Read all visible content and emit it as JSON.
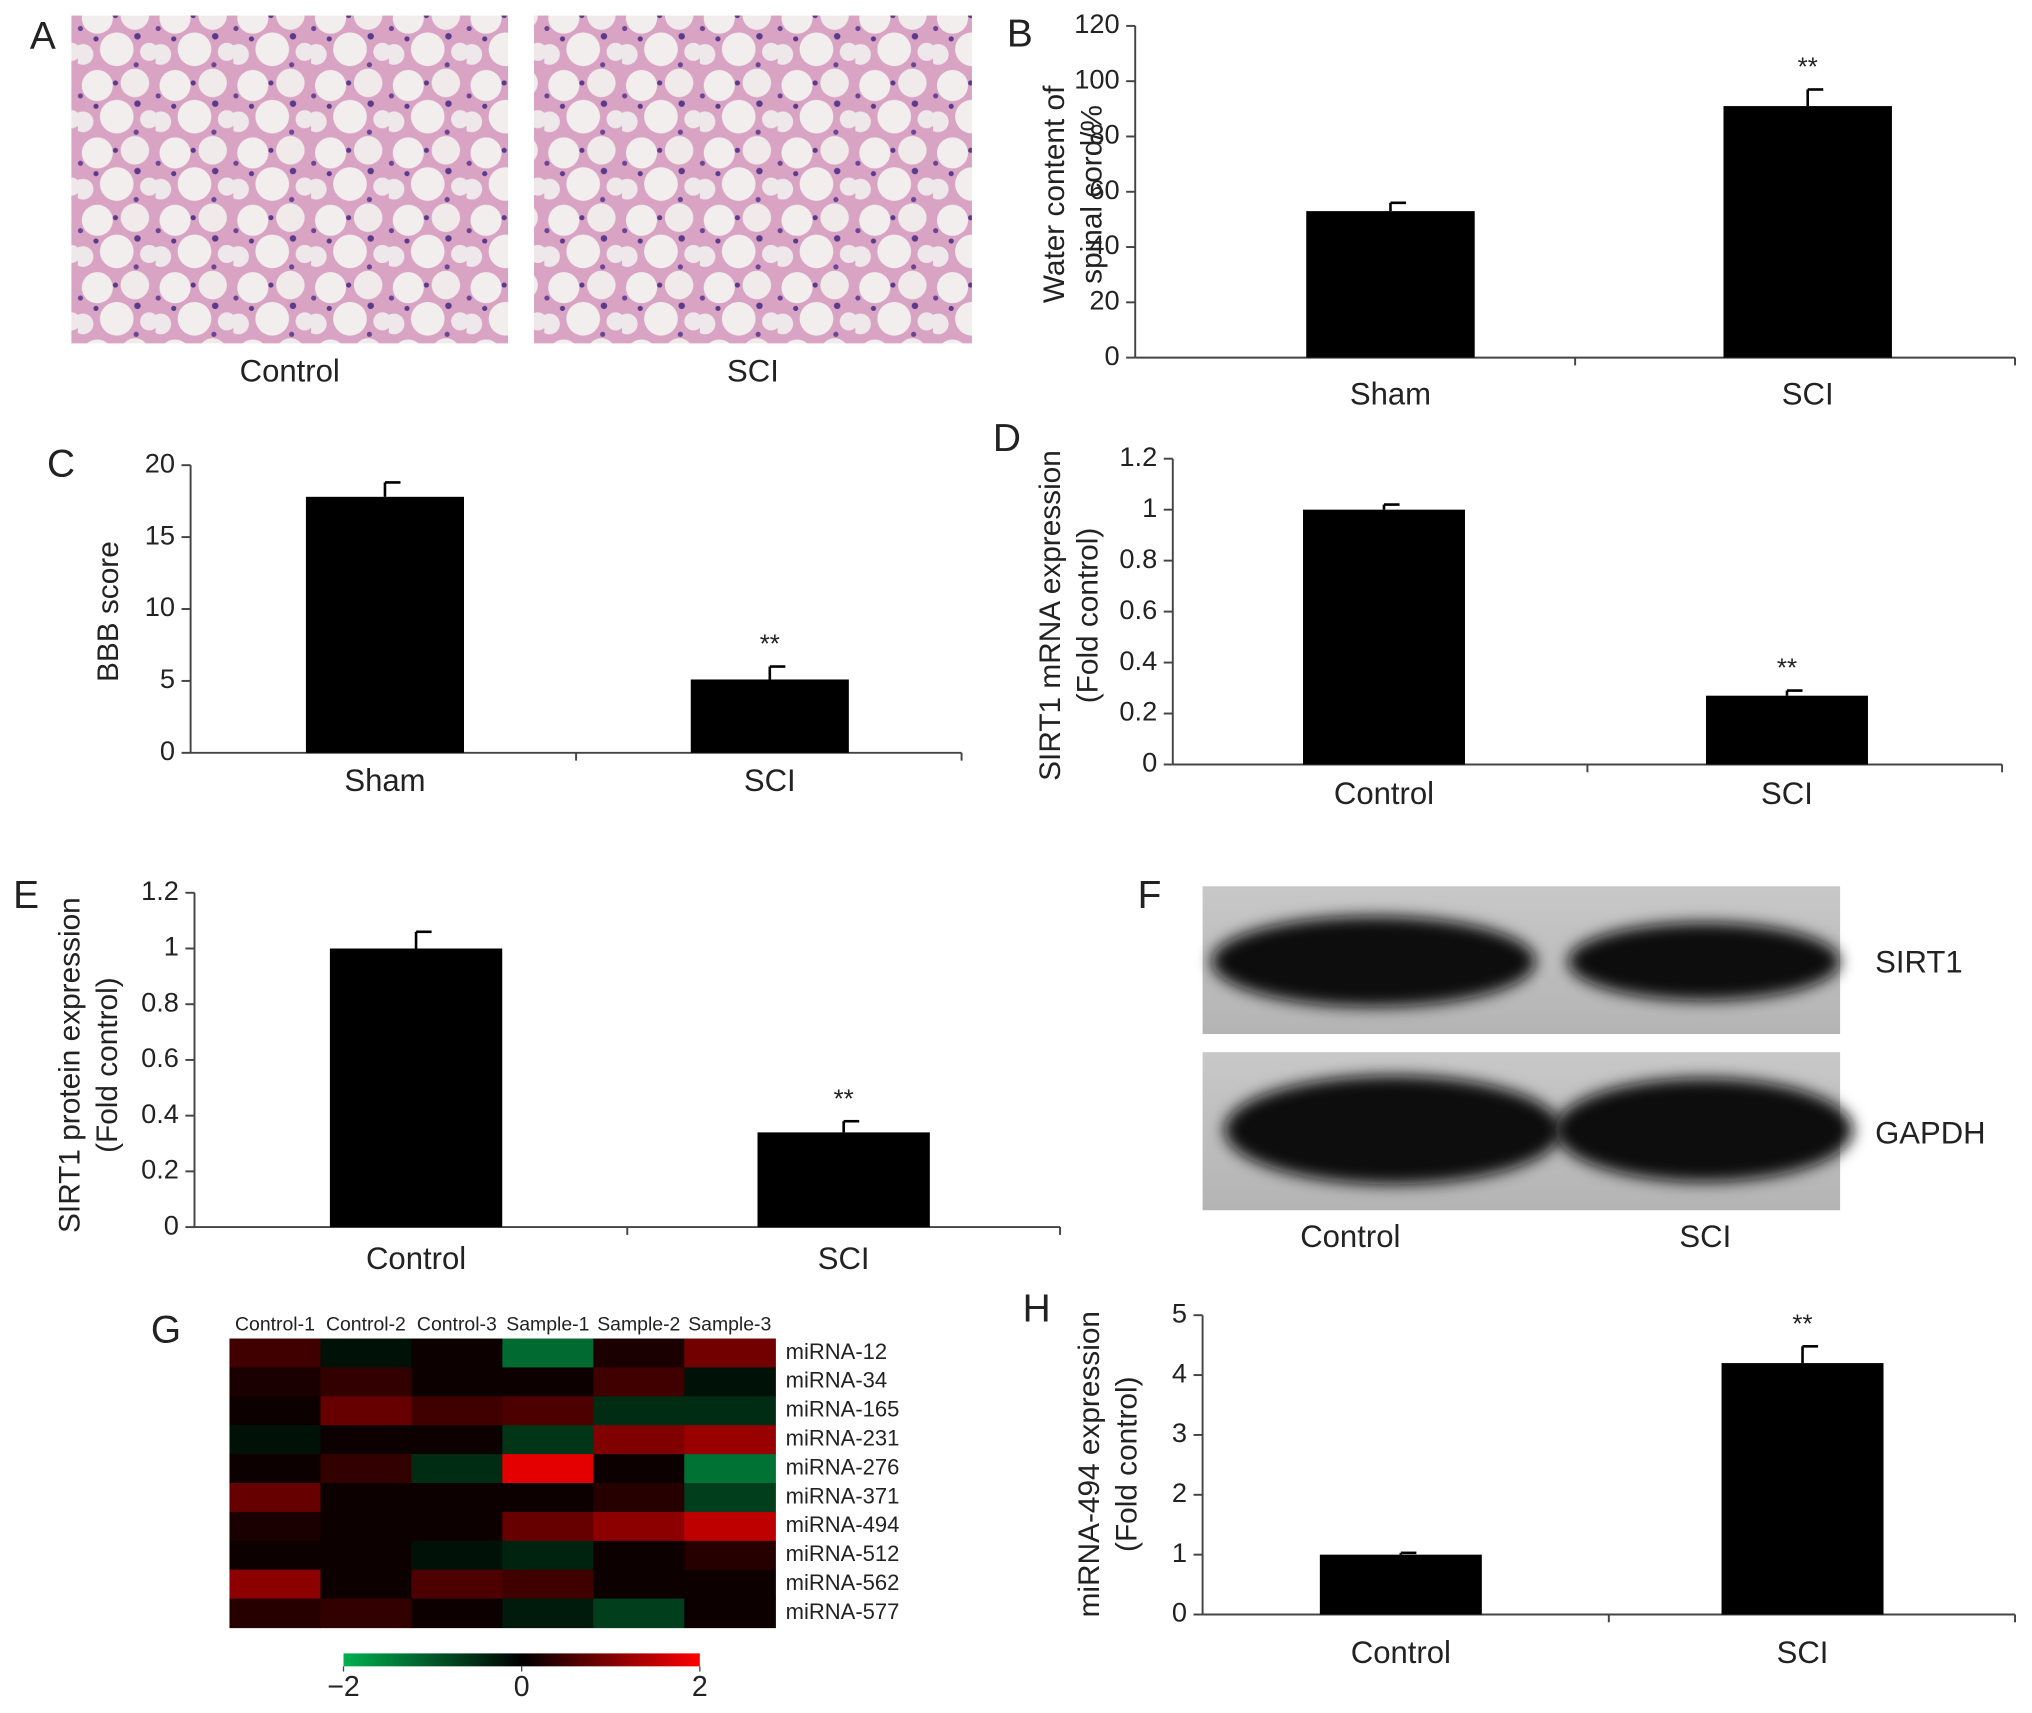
{
  "chart_data": [
    {
      "type": "image",
      "panel": "A",
      "labels": [
        "Control",
        "SCI"
      ]
    },
    {
      "type": "bar",
      "panel": "B",
      "y_label": [
        "Water content of",
        "spinal cord/%"
      ],
      "categories": [
        "Sham",
        "SCI"
      ],
      "values": [
        53,
        91
      ],
      "errors": [
        3,
        6
      ],
      "annotations": [
        null,
        "**"
      ],
      "color": "#000000",
      "ylim": [
        0,
        120
      ],
      "yticks": [
        0,
        20,
        40,
        60,
        80,
        100,
        120
      ]
    },
    {
      "type": "bar",
      "panel": "C",
      "y_label": [
        "BBB score"
      ],
      "categories": [
        "Sham",
        "SCI"
      ],
      "values": [
        17.8,
        5.1
      ],
      "errors": [
        1.0,
        0.9
      ],
      "annotations": [
        null,
        "**"
      ],
      "color": "#000000",
      "ylim": [
        0,
        20
      ],
      "yticks": [
        0,
        5,
        10,
        15,
        20
      ]
    },
    {
      "type": "bar",
      "panel": "D",
      "y_label": [
        "SIRT1 mRNA expression",
        "(Fold control)"
      ],
      "categories": [
        "Control",
        "SCI"
      ],
      "values": [
        1.0,
        0.27
      ],
      "errors": [
        0.02,
        0.02
      ],
      "annotations": [
        null,
        "**"
      ],
      "color": "#000000",
      "ylim": [
        0,
        1.2
      ],
      "yticks": [
        0,
        0.2,
        0.4,
        0.6,
        0.8,
        1,
        1.2
      ]
    },
    {
      "type": "bar",
      "panel": "E",
      "y_label": [
        "SIRT1 protein expression",
        "(Fold control)"
      ],
      "categories": [
        "Control",
        "SCI"
      ],
      "values": [
        1.0,
        0.34
      ],
      "errors": [
        0.06,
        0.04
      ],
      "annotations": [
        null,
        "**"
      ],
      "color": "#000000",
      "ylim": [
        0,
        1.2
      ],
      "yticks": [
        0,
        0.2,
        0.4,
        0.6,
        0.8,
        1,
        1.2
      ]
    },
    {
      "type": "blot",
      "panel": "F",
      "bands": [
        "SIRT1",
        "GAPDH"
      ],
      "lanes": [
        "Control",
        "SCI"
      ]
    },
    {
      "type": "heatmap",
      "panel": "G",
      "x": [
        "Control-1",
        "Control-2",
        "Control-3",
        "Sample-1",
        "Sample-2",
        "Sample-3"
      ],
      "y": [
        "miRNA-12",
        "miRNA-34",
        "miRNA-165",
        "miRNA-231",
        "miRNA-276",
        "miRNA-371",
        "miRNA-494",
        "miRNA-512",
        "miRNA-562",
        "miRNA-577"
      ],
      "z": [
        [
          0.5,
          -0.2,
          0.1,
          -1.2,
          0.2,
          0.9
        ],
        [
          0.2,
          0.4,
          0.1,
          0.1,
          0.5,
          -0.2
        ],
        [
          0.1,
          0.8,
          0.5,
          0.6,
          -0.5,
          -0.5
        ],
        [
          -0.2,
          0.1,
          0.1,
          -0.6,
          1.0,
          1.2
        ],
        [
          0.1,
          0.4,
          -0.5,
          1.8,
          0.1,
          -1.3
        ],
        [
          0.8,
          0.1,
          0.1,
          0.1,
          0.3,
          -0.7
        ],
        [
          0.2,
          0.1,
          0.1,
          0.8,
          1.1,
          1.5
        ],
        [
          0.1,
          0.1,
          -0.2,
          -0.4,
          0.1,
          0.3
        ],
        [
          1.1,
          0.1,
          0.6,
          0.5,
          0.1,
          0.1
        ],
        [
          0.3,
          0.4,
          0.1,
          -0.3,
          -0.7,
          0.1
        ]
      ],
      "zlim": [
        -2,
        2
      ],
      "colors": [
        "#00b050",
        "#000000",
        "#ff0000"
      ],
      "colorbar_ticks": [
        {
          "value": -2,
          "label": "−2"
        },
        0,
        2
      ]
    },
    {
      "type": "bar",
      "panel": "H",
      "y_label": [
        "miRNA-494 expression",
        "(Fold control)"
      ],
      "categories": [
        "Control",
        "SCI"
      ],
      "values": [
        1.0,
        4.2
      ],
      "errors": [
        0.03,
        0.28
      ],
      "annotations": [
        null,
        "**"
      ],
      "color": "#000000",
      "ylim": [
        0,
        5
      ],
      "yticks": [
        0,
        1,
        2,
        3,
        4,
        5
      ]
    }
  ]
}
